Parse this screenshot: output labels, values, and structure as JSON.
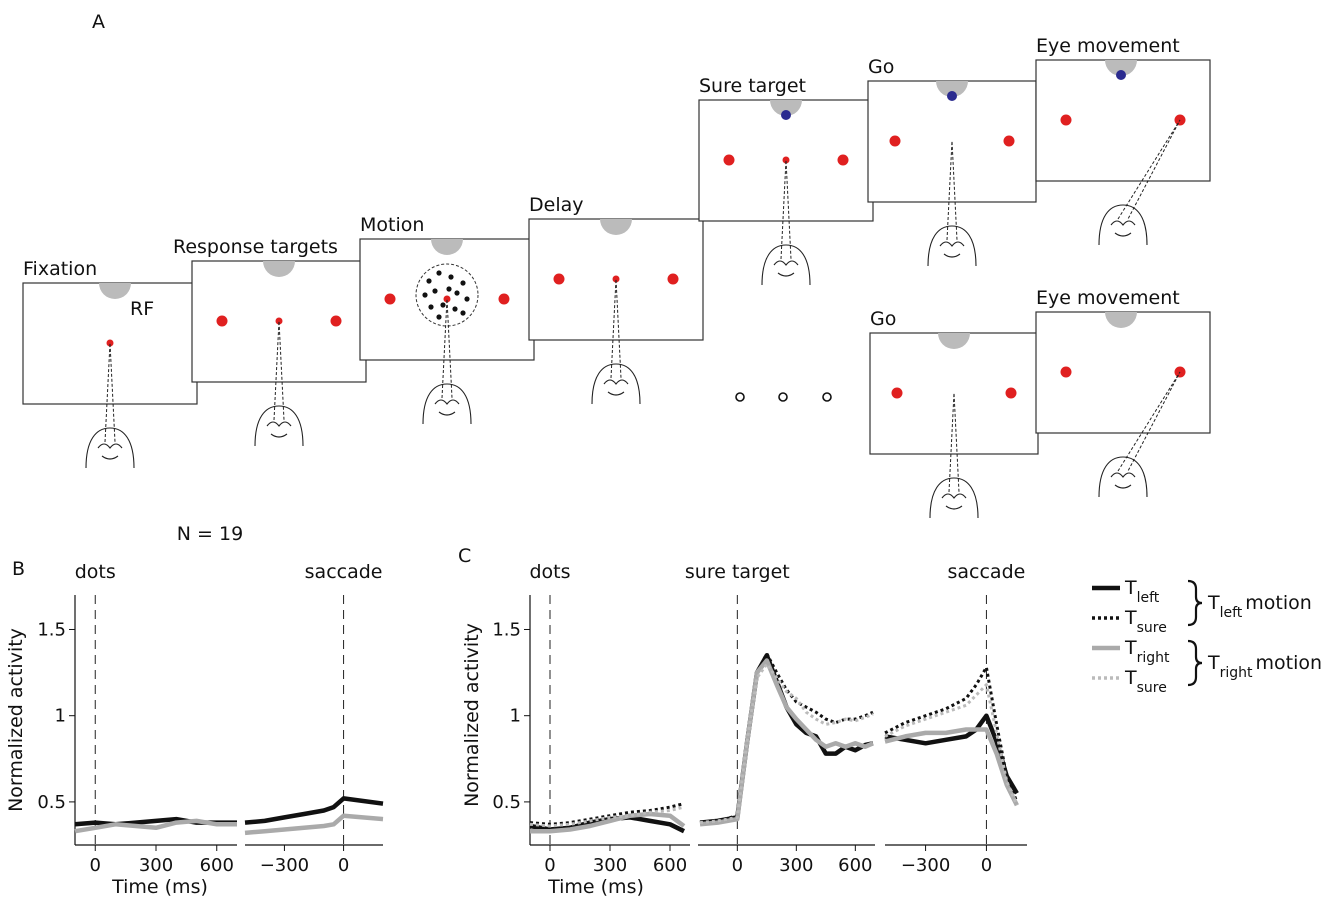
{
  "panel_a": {
    "label": "A",
    "rf_label": "RF",
    "screens": [
      "Fixation",
      "Response targets",
      "Motion",
      "Delay",
      "Sure target",
      "Go",
      "Eye movement",
      "Go",
      "Eye movement"
    ]
  },
  "chart_data": [
    {
      "type": "line",
      "panel_label": "B",
      "title": "N = 19",
      "ylabel": "Normalized activity",
      "xlabel": "Time (ms)",
      "ylim": [
        0.25,
        1.7
      ],
      "yticks": [
        0.5,
        1,
        1.5
      ],
      "series": [
        {
          "color": "#111111",
          "style": "solid"
        },
        {
          "color": "#aaaaaa",
          "style": "solid"
        }
      ],
      "subplots": [
        {
          "xlim": [
            -100,
            700
          ],
          "xticks": [
            0,
            300,
            600
          ],
          "event": {
            "x": 0,
            "label": "dots"
          },
          "x": [
            -100,
            0,
            100,
            200,
            300,
            400,
            500,
            600,
            700
          ],
          "series": [
            {
              "values": [
                0.37,
                0.38,
                0.37,
                0.38,
                0.39,
                0.4,
                0.38,
                0.38,
                0.38
              ]
            },
            {
              "values": [
                0.33,
                0.35,
                0.37,
                0.36,
                0.35,
                0.38,
                0.39,
                0.37,
                0.37
              ]
            }
          ]
        },
        {
          "xlim": [
            -500,
            200
          ],
          "xticks": [
            {
              "value": -300,
              "label": "−300"
            },
            0
          ],
          "event": {
            "x": 0,
            "label": "saccade"
          },
          "x": [
            -500,
            -400,
            -300,
            -200,
            -100,
            -50,
            0,
            200
          ],
          "series": [
            {
              "values": [
                0.38,
                0.39,
                0.41,
                0.43,
                0.45,
                0.47,
                0.52,
                0.49
              ]
            },
            {
              "values": [
                0.32,
                0.33,
                0.34,
                0.35,
                0.36,
                0.37,
                0.42,
                0.4
              ]
            }
          ]
        }
      ]
    },
    {
      "type": "line",
      "panel_label": "C",
      "ylabel": "Normalized activity",
      "xlabel": "Time (ms)",
      "ylim": [
        0.25,
        1.7
      ],
      "yticks": [
        0.5,
        1,
        1.5
      ],
      "series": [
        {
          "name": "T",
          "subscript": "left",
          "color": "#111111",
          "style": "solid"
        },
        {
          "name": "T",
          "subscript": "sure",
          "color": "#111111",
          "style": "dotted"
        },
        {
          "name": "T",
          "subscript": "right",
          "color": "#aaaaaa",
          "style": "solid"
        },
        {
          "name": "T",
          "subscript": "sure",
          "color": "#bbbbbb",
          "style": "dotted"
        }
      ],
      "legend_groups": [
        {
          "label": "T",
          "subscript": "left",
          "text": "motion"
        },
        {
          "label": "T",
          "subscript": "right",
          "text": "motion"
        }
      ],
      "subplots": [
        {
          "xlim": [
            -100,
            700
          ],
          "xticks": [
            0,
            300,
            600
          ],
          "event": {
            "x": 0,
            "label": "dots"
          },
          "x": [
            -100,
            0,
            100,
            200,
            300,
            400,
            500,
            600,
            670
          ],
          "series": [
            {
              "values": [
                0.36,
                0.34,
                0.35,
                0.38,
                0.4,
                0.41,
                0.39,
                0.37,
                0.33
              ]
            },
            {
              "values": [
                0.38,
                0.37,
                0.38,
                0.4,
                0.42,
                0.44,
                0.45,
                0.47,
                0.49
              ]
            },
            {
              "values": [
                0.33,
                0.33,
                0.34,
                0.36,
                0.39,
                0.42,
                0.43,
                0.42,
                0.36
              ]
            },
            {
              "values": [
                0.37,
                0.36,
                0.37,
                0.39,
                0.41,
                0.42,
                0.44,
                0.45,
                0.47
              ]
            }
          ]
        },
        {
          "xlim": [
            -200,
            700
          ],
          "xticks": [
            0,
            300,
            600
          ],
          "event": {
            "x": 0,
            "label": "sure target"
          },
          "x": [
            -190,
            -100,
            0,
            50,
            100,
            150,
            200,
            250,
            300,
            350,
            400,
            450,
            500,
            550,
            600,
            650,
            690
          ],
          "series": [
            {
              "values": [
                0.38,
                0.39,
                0.41,
                0.85,
                1.25,
                1.35,
                1.2,
                1.05,
                0.95,
                0.9,
                0.88,
                0.78,
                0.78,
                0.82,
                0.8,
                0.83,
                0.84
              ]
            },
            {
              "values": [
                0.38,
                0.39,
                0.42,
                0.88,
                1.25,
                1.36,
                1.25,
                1.15,
                1.08,
                1.05,
                1.02,
                0.98,
                0.96,
                0.98,
                0.98,
                1.0,
                1.02
              ]
            },
            {
              "values": [
                0.37,
                0.38,
                0.4,
                0.85,
                1.25,
                1.32,
                1.18,
                1.05,
                0.98,
                0.92,
                0.86,
                0.82,
                0.84,
                0.82,
                0.84,
                0.82,
                0.84
              ]
            },
            {
              "values": [
                0.38,
                0.39,
                0.41,
                0.86,
                1.22,
                1.3,
                1.22,
                1.14,
                1.1,
                1.02,
                0.98,
                0.95,
                0.96,
                0.98,
                0.97,
                0.99,
                1.01
              ]
            }
          ]
        },
        {
          "xlim": [
            -500,
            200
          ],
          "xticks": [
            {
              "value": -300,
              "label": "−300"
            },
            0
          ],
          "event": {
            "x": 0,
            "label": "saccade"
          },
          "x": [
            -500,
            -400,
            -300,
            -200,
            -100,
            -50,
            0,
            50,
            100,
            150
          ],
          "series": [
            {
              "values": [
                0.88,
                0.86,
                0.84,
                0.86,
                0.88,
                0.92,
                1.0,
                0.85,
                0.65,
                0.55
              ]
            },
            {
              "values": [
                0.9,
                0.96,
                1.0,
                1.04,
                1.1,
                1.18,
                1.28,
                0.95,
                0.65,
                0.5
              ]
            },
            {
              "values": [
                0.85,
                0.88,
                0.9,
                0.9,
                0.92,
                0.92,
                0.92,
                0.78,
                0.6,
                0.48
              ]
            },
            {
              "values": [
                0.88,
                0.94,
                0.98,
                1.02,
                1.06,
                1.12,
                1.18,
                0.9,
                0.62,
                0.48
              ]
            }
          ]
        }
      ]
    }
  ]
}
